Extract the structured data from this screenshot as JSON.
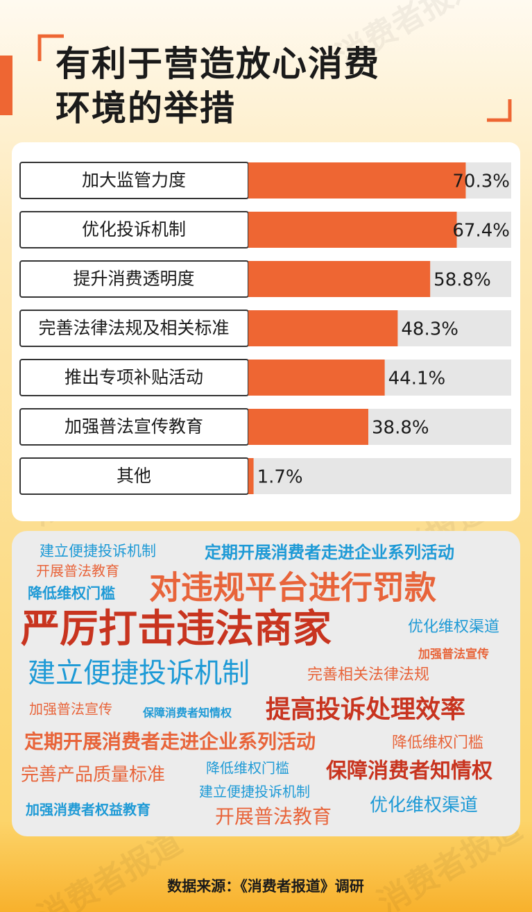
{
  "chart_data": {
    "type": "bar",
    "orientation": "horizontal",
    "title": "有利于营造放心消费\n环境的举措",
    "categories": [
      "加大监管力度",
      "优化投诉机制",
      "提升消费透明度",
      "完善法律法规及相关标准",
      "推出专项补贴活动",
      "加强普法宣传教育",
      "其他"
    ],
    "values": [
      70.3,
      67.4,
      58.8,
      48.3,
      44.1,
      38.8,
      1.7
    ],
    "value_labels": [
      "70.3%",
      "67.4%",
      "58.8%",
      "48.3%",
      "44.1%",
      "38.8%",
      "1.7%"
    ],
    "color": "#ee6633",
    "xlim": [
      0,
      85
    ]
  },
  "word_cloud": {
    "words": [
      "建立便捷投诉机制",
      "定期开展消费者走进企业系列活动",
      "开展普法教育",
      "对违规平台进行罚款",
      "降低维权门槛",
      "严厉打击违法商家",
      "优化维权渠道",
      "加强普法宣传",
      "建立便捷投诉机制",
      "完善相关法律法规",
      "加强普法宣传",
      "保障消费者知情权",
      "提高投诉处理效率",
      "定期开展消费者走进企业系列活动",
      "降低维权门槛",
      "完善产品质量标准",
      "降低维权门槛",
      "保障消费者知情权",
      "建立便捷投诉机制",
      "加强消费者权益教育",
      "开展普法教育",
      "优化维权渠道"
    ]
  },
  "watermark": "消费者报道",
  "source": "数据来源：《消费者报道》调研"
}
